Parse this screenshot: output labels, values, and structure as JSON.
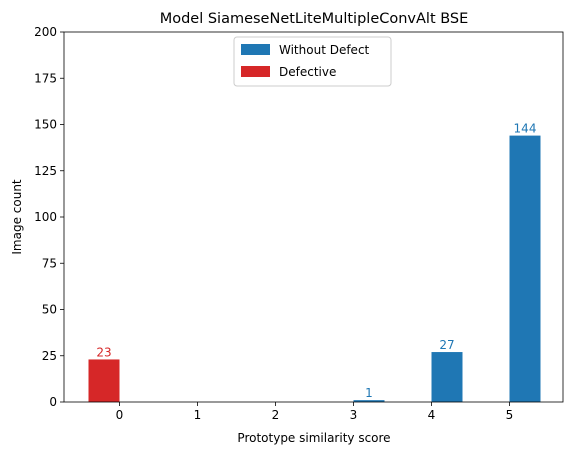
{
  "chart_data": {
    "type": "bar",
    "title": "Model SiameseNetLiteMultipleConvAlt BSE",
    "xlabel": "Prototype similarity score",
    "ylabel": "Image count",
    "ylim": [
      0,
      200
    ],
    "y_ticks": [
      "0",
      "25",
      "50",
      "75",
      "100",
      "125",
      "150",
      "175",
      "200"
    ],
    "categories": [
      "0",
      "1",
      "2",
      "3",
      "4",
      "5"
    ],
    "grid": false,
    "legend_position": "top-center",
    "series": [
      {
        "name": "Without Defect",
        "color": "#1f77b4",
        "values": [
          0,
          0,
          0,
          1,
          27,
          144
        ],
        "labels": [
          "",
          "",
          "",
          "1",
          "27",
          "144"
        ]
      },
      {
        "name": "Defective",
        "color": "#d62728",
        "values": [
          23,
          0,
          0,
          0,
          0,
          0
        ],
        "labels": [
          "23",
          "",
          "",
          "",
          "",
          ""
        ]
      }
    ]
  }
}
